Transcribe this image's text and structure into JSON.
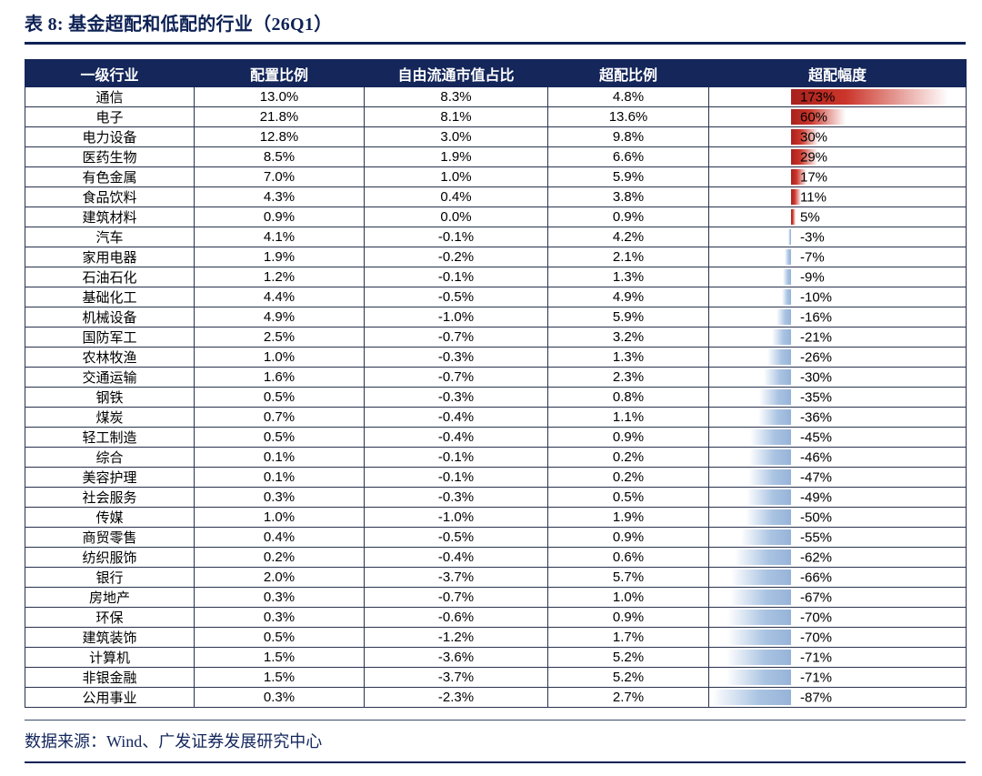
{
  "title": "表 8:  基金超配和低配的行业（26Q1）",
  "source": "数据来源：Wind、广发证券发展研究中心",
  "colors": {
    "header_bg": "#14265a",
    "title_navy": "#0e2255",
    "positive_bar_red": "#cb362b",
    "negative_bar_blue": "#a9c3e2",
    "grid_line": "#28324e"
  },
  "chart_data": {
    "type": "table",
    "columns": [
      "一级行业",
      "配置比例",
      "自由流通市值占比",
      "超配比例",
      "超配幅度"
    ],
    "bar_column": "超配幅度",
    "bar_colors": {
      "positive": "#cb362b",
      "negative": "#a9c3e2"
    },
    "rows": [
      {
        "industry": "通信",
        "allocation": "13.0%",
        "free_float_share": "8.3%",
        "overweight_ratio": "4.8%",
        "magnitude_label": "173%",
        "magnitude": 173
      },
      {
        "industry": "电子",
        "allocation": "21.8%",
        "free_float_share": "8.1%",
        "overweight_ratio": "13.6%",
        "magnitude_label": "60%",
        "magnitude": 60
      },
      {
        "industry": "电力设备",
        "allocation": "12.8%",
        "free_float_share": "3.0%",
        "overweight_ratio": "9.8%",
        "magnitude_label": "30%",
        "magnitude": 30
      },
      {
        "industry": "医药生物",
        "allocation": "8.5%",
        "free_float_share": "1.9%",
        "overweight_ratio": "6.6%",
        "magnitude_label": "29%",
        "magnitude": 29
      },
      {
        "industry": "有色金属",
        "allocation": "7.0%",
        "free_float_share": "1.0%",
        "overweight_ratio": "5.9%",
        "magnitude_label": "17%",
        "magnitude": 17
      },
      {
        "industry": "食品饮料",
        "allocation": "4.3%",
        "free_float_share": "0.4%",
        "overweight_ratio": "3.8%",
        "magnitude_label": "11%",
        "magnitude": 11
      },
      {
        "industry": "建筑材料",
        "allocation": "0.9%",
        "free_float_share": "0.0%",
        "overweight_ratio": "0.9%",
        "magnitude_label": "5%",
        "magnitude": 5
      },
      {
        "industry": "汽车",
        "allocation": "4.1%",
        "free_float_share": "-0.1%",
        "overweight_ratio": "4.2%",
        "magnitude_label": "-3%",
        "magnitude": -3
      },
      {
        "industry": "家用电器",
        "allocation": "1.9%",
        "free_float_share": "-0.2%",
        "overweight_ratio": "2.1%",
        "magnitude_label": "-7%",
        "magnitude": -7
      },
      {
        "industry": "石油石化",
        "allocation": "1.2%",
        "free_float_share": "-0.1%",
        "overweight_ratio": "1.3%",
        "magnitude_label": "-9%",
        "magnitude": -9
      },
      {
        "industry": "基础化工",
        "allocation": "4.4%",
        "free_float_share": "-0.5%",
        "overweight_ratio": "4.9%",
        "magnitude_label": "-10%",
        "magnitude": -10
      },
      {
        "industry": "机械设备",
        "allocation": "4.9%",
        "free_float_share": "-1.0%",
        "overweight_ratio": "5.9%",
        "magnitude_label": "-16%",
        "magnitude": -16
      },
      {
        "industry": "国防军工",
        "allocation": "2.5%",
        "free_float_share": "-0.7%",
        "overweight_ratio": "3.2%",
        "magnitude_label": "-21%",
        "magnitude": -21
      },
      {
        "industry": "农林牧渔",
        "allocation": "1.0%",
        "free_float_share": "-0.3%",
        "overweight_ratio": "1.3%",
        "magnitude_label": "-26%",
        "magnitude": -26
      },
      {
        "industry": "交通运输",
        "allocation": "1.6%",
        "free_float_share": "-0.7%",
        "overweight_ratio": "2.3%",
        "magnitude_label": "-30%",
        "magnitude": -30
      },
      {
        "industry": "钢铁",
        "allocation": "0.5%",
        "free_float_share": "-0.3%",
        "overweight_ratio": "0.8%",
        "magnitude_label": "-35%",
        "magnitude": -35
      },
      {
        "industry": "煤炭",
        "allocation": "0.7%",
        "free_float_share": "-0.4%",
        "overweight_ratio": "1.1%",
        "magnitude_label": "-36%",
        "magnitude": -36
      },
      {
        "industry": "轻工制造",
        "allocation": "0.5%",
        "free_float_share": "-0.4%",
        "overweight_ratio": "0.9%",
        "magnitude_label": "-45%",
        "magnitude": -45
      },
      {
        "industry": "综合",
        "allocation": "0.1%",
        "free_float_share": "-0.1%",
        "overweight_ratio": "0.2%",
        "magnitude_label": "-46%",
        "magnitude": -46
      },
      {
        "industry": "美容护理",
        "allocation": "0.1%",
        "free_float_share": "-0.1%",
        "overweight_ratio": "0.2%",
        "magnitude_label": "-47%",
        "magnitude": -47
      },
      {
        "industry": "社会服务",
        "allocation": "0.3%",
        "free_float_share": "-0.3%",
        "overweight_ratio": "0.5%",
        "magnitude_label": "-49%",
        "magnitude": -49
      },
      {
        "industry": "传媒",
        "allocation": "1.0%",
        "free_float_share": "-1.0%",
        "overweight_ratio": "1.9%",
        "magnitude_label": "-50%",
        "magnitude": -50
      },
      {
        "industry": "商贸零售",
        "allocation": "0.4%",
        "free_float_share": "-0.5%",
        "overweight_ratio": "0.9%",
        "magnitude_label": "-55%",
        "magnitude": -55
      },
      {
        "industry": "纺织服饰",
        "allocation": "0.2%",
        "free_float_share": "-0.4%",
        "overweight_ratio": "0.6%",
        "magnitude_label": "-62%",
        "magnitude": -62
      },
      {
        "industry": "银行",
        "allocation": "2.0%",
        "free_float_share": "-3.7%",
        "overweight_ratio": "5.7%",
        "magnitude_label": "-66%",
        "magnitude": -66
      },
      {
        "industry": "房地产",
        "allocation": "0.3%",
        "free_float_share": "-0.7%",
        "overweight_ratio": "1.0%",
        "magnitude_label": "-67%",
        "magnitude": -67
      },
      {
        "industry": "环保",
        "allocation": "0.3%",
        "free_float_share": "-0.6%",
        "overweight_ratio": "0.9%",
        "magnitude_label": "-70%",
        "magnitude": -70
      },
      {
        "industry": "建筑装饰",
        "allocation": "0.5%",
        "free_float_share": "-1.2%",
        "overweight_ratio": "1.7%",
        "magnitude_label": "-70%",
        "magnitude": -70
      },
      {
        "industry": "计算机",
        "allocation": "1.5%",
        "free_float_share": "-3.6%",
        "overweight_ratio": "5.2%",
        "magnitude_label": "-71%",
        "magnitude": -71
      },
      {
        "industry": "非银金融",
        "allocation": "1.5%",
        "free_float_share": "-3.7%",
        "overweight_ratio": "5.2%",
        "magnitude_label": "-71%",
        "magnitude": -71
      },
      {
        "industry": "公用事业",
        "allocation": "0.3%",
        "free_float_share": "-2.3%",
        "overweight_ratio": "2.7%",
        "magnitude_label": "-87%",
        "magnitude": -87
      }
    ]
  }
}
